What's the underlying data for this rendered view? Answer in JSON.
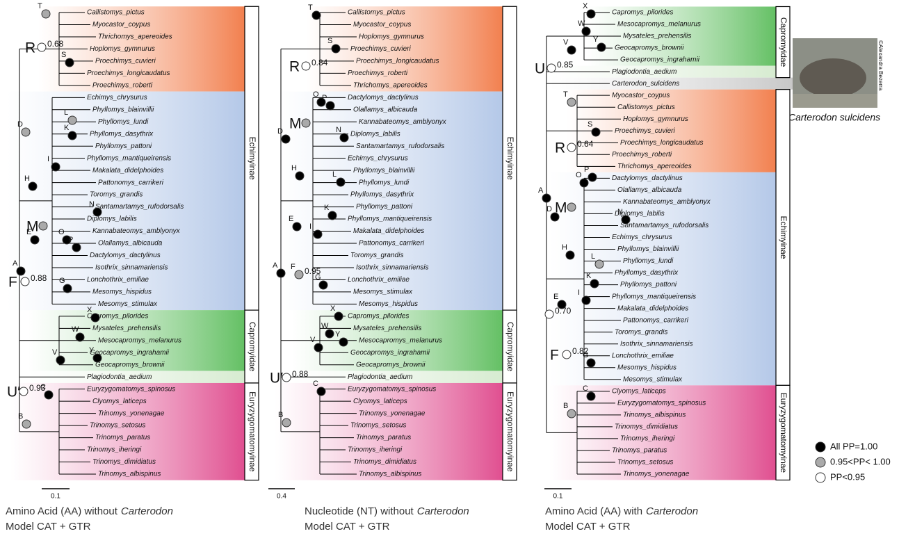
{
  "panels": [
    {
      "caption": {
        "text": "Amino Acid (AA) without",
        "italic": "Carterodon",
        "model": "Model CAT + GTR"
      },
      "scale": "0.1",
      "groups": [
        {
          "color": "#f2804f",
          "taxa": [
            "Callistomys_pictus",
            "Myocastor_coypus",
            "Thrichomys_apereoides",
            "Hoplomys_gymnurus",
            "Proechimys_cuvieri",
            "Proechimys_longicaudatus",
            "Proechimys_roberti"
          ]
        },
        {
          "color": "#b4c8e8",
          "taxa": [
            "Echimys_chrysurus",
            "Phyllomys_blainvillii",
            "Phyllomys_lundi",
            "Phyllomys_dasythrix",
            "Phyllomys_pattoni",
            "Phyllomys_mantiqueirensis",
            "Makalata_didelphoides",
            "Pattonomys_carrikeri",
            "Toromys_grandis",
            "Santamartamys_rufodorsalis",
            "Diplomys_labilis",
            "Kannabateomys_amblyonyx",
            "Olallamys_albicauda",
            "Dactylomys_dactylinus",
            "Isothrix_sinnamariensis",
            "Lonchothrix_emiliae",
            "Mesomys_hispidus",
            "Mesomys_stimulax"
          ]
        },
        {
          "color": "#64c064",
          "taxa": [
            "Capromys_pilorides",
            "Mysateles_prehensilis",
            "Mesocapromys_melanurus",
            "Geocapromys_ingrahamii",
            "Geocapromys_brownii"
          ]
        },
        {
          "color": "#d6ebd0",
          "taxa": [
            "Plagiodontia_aedium"
          ]
        },
        {
          "color": "#e04f90",
          "taxa": [
            "Euryzygomatomys_spinosus",
            "Clyomys_laticeps",
            "Trinomys_yonenagae",
            "Trinomys_setosus",
            "Trinomys_paratus",
            "Trinomys_iheringi",
            "Trinomys_dimidiatus",
            "Trinomys_albispinus"
          ]
        }
      ],
      "boxes": [
        {
          "label": "Echimyinae"
        },
        {
          "label": "Capromyidae"
        },
        {
          "label": "Euryzygomatomyinae"
        }
      ],
      "nodes": [
        {
          "label": "T",
          "marker": "#aaa"
        },
        {
          "label": "R",
          "marker": "#fff",
          "support": "0.68",
          "large": true
        },
        {
          "label": "S",
          "marker": "#000"
        },
        {
          "label": "D",
          "marker": "#aaa"
        },
        {
          "label": "L",
          "marker": "#aaa"
        },
        {
          "label": "K",
          "marker": "#000"
        },
        {
          "label": "I",
          "marker": "#000"
        },
        {
          "label": "H",
          "marker": "#000"
        },
        {
          "label": "N",
          "marker": "#000"
        },
        {
          "label": "M",
          "marker": "#aaa",
          "large": true
        },
        {
          "label": "O",
          "marker": "#000"
        },
        {
          "label": "P",
          "marker": "#000"
        },
        {
          "label": "E",
          "marker": "#000"
        },
        {
          "label": "A",
          "marker": "#000"
        },
        {
          "label": "F",
          "marker": "#fff",
          "support": "0.88",
          "large": true
        },
        {
          "label": "G",
          "marker": "#000"
        },
        {
          "label": "X",
          "marker": "#000"
        },
        {
          "label": "W",
          "marker": "#000"
        },
        {
          "label": "Y",
          "marker": "#000"
        },
        {
          "label": "V",
          "marker": "#000"
        },
        {
          "label": "U′",
          "marker": "#fff",
          "support": "0.93",
          "large": true
        },
        {
          "label": "C",
          "marker": "#000"
        },
        {
          "label": "B",
          "marker": "#aaa"
        }
      ]
    },
    {
      "caption": {
        "text": "Nucleotide (NT) without",
        "italic": "Carterodon",
        "model": "Model CAT + GTR"
      },
      "scale": "0.4",
      "groups": [
        {
          "color": "#f2804f",
          "taxa": [
            "Callistomys_pictus",
            "Myocastor_coypus",
            "Hoplomys_gymnurus",
            "Proechimys_cuvieri",
            "Proechimys_longicaudatus",
            "Proechimys_roberti",
            "Thrichomys_apereoides"
          ]
        },
        {
          "color": "#b4c8e8",
          "taxa": [
            "Dactylomys_dactylinus",
            "Olallamys_albicauda",
            "Kannabateomys_amblyonyx",
            "Diplomys_labilis",
            "Santamartamys_rufodorsalis",
            "Echimys_chrysurus",
            "Phyllomys_blainvillii",
            "Phyllomys_lundi",
            "Phyllomys_dasythrix",
            "Phyllomys_pattoni",
            "Phyllomys_mantiqueirensis",
            "Makalata_didelphoides",
            "Pattonomys_carrikeri",
            "Toromys_grandis",
            "Isothrix_sinnamariensis",
            "Lonchothrix_emiliae",
            "Mesomys_stimulax",
            "Mesomys_hispidus"
          ]
        },
        {
          "color": "#64c064",
          "taxa": [
            "Capromys_pilorides",
            "Mysateles_prehensilis",
            "Mesocapromys_melanurus",
            "Geocapromys_ingrahamii",
            "Geocapromys_brownii"
          ]
        },
        {
          "color": "#d6ebd0",
          "taxa": [
            "Plagiodontia_aedium"
          ]
        },
        {
          "color": "#e04f90",
          "taxa": [
            "Euryzygomatomys_spinosus",
            "Clyomys_laticeps",
            "Trinomys_yonenagae",
            "Trinomys_setosus",
            "Trinomys_paratus",
            "Trinomys_iheringi",
            "Trinomys_dimidiatus",
            "Trinomys_albispinus"
          ]
        }
      ],
      "boxes": [
        {
          "label": "Echimyinae"
        },
        {
          "label": "Capromyidae"
        },
        {
          "label": "Euryzygomatomyinae"
        }
      ],
      "nodes": [
        {
          "label": "T",
          "marker": "#000"
        },
        {
          "label": "R",
          "marker": "#fff",
          "support": "0.84",
          "large": true
        },
        {
          "label": "S",
          "marker": "#000"
        },
        {
          "label": "O",
          "marker": "#000"
        },
        {
          "label": "P",
          "marker": "#000"
        },
        {
          "label": "M",
          "marker": "#aaa",
          "large": true
        },
        {
          "label": "D",
          "marker": "#000"
        },
        {
          "label": "N",
          "marker": "#000"
        },
        {
          "label": "H",
          "marker": "#000"
        },
        {
          "label": "L",
          "marker": "#000"
        },
        {
          "label": "K",
          "marker": "#000"
        },
        {
          "label": "I",
          "marker": "#000"
        },
        {
          "label": "E",
          "marker": "#000"
        },
        {
          "label": "A",
          "marker": "#000"
        },
        {
          "label": "F",
          "marker": "#aaa",
          "support": "0.95"
        },
        {
          "label": "G",
          "marker": "#000"
        },
        {
          "label": "X",
          "marker": "#000"
        },
        {
          "label": "W",
          "marker": "#000"
        },
        {
          "label": "Y",
          "marker": "#000"
        },
        {
          "label": "V",
          "marker": "#000"
        },
        {
          "label": "U′",
          "marker": "#fff",
          "support": "0.88",
          "large": true
        },
        {
          "label": "C",
          "marker": "#000"
        },
        {
          "label": "B",
          "marker": "#aaa"
        }
      ]
    },
    {
      "caption": {
        "text": "Amino Acid (AA) with",
        "italic": "Carterodon",
        "model": "Model CAT + GTR"
      },
      "scale": "0.1",
      "groups": [
        {
          "color": "#64c064",
          "taxa": [
            "Capromys_pilorides",
            "Mesocapromys_melanurus",
            "Mysateles_prehensilis",
            "Geocapromys_brownii",
            "Geocapromys_ingrahamii"
          ]
        },
        {
          "color": "#d6ebd0",
          "taxa": [
            "Plagiodontia_aedium"
          ]
        },
        {
          "color": "#c8c8c8",
          "taxa": [
            "Carterodon_sulcidens"
          ]
        },
        {
          "color": "#f2804f",
          "taxa": [
            "Myocastor_coypus",
            "Callistomys_pictus",
            "Hoplomys_gymnurus",
            "Proechimys_cuvieri",
            "Proechimys_longicaudatus",
            "Proechimys_roberti",
            "Thrichomys_apereoides"
          ]
        },
        {
          "color": "#b4c8e8",
          "taxa": [
            "Dactylomys_dactylinus",
            "Olallamys_albicauda",
            "Kannabateomys_amblyonyx",
            "Diplomys_labilis",
            "Santamartamys_rufodorsalis",
            "Echimys_chrysurus",
            "Phyllomys_blainvillii",
            "Phyllomys_lundi",
            "Phyllomys_dasythrix",
            "Phyllomys_pattoni",
            "Phyllomys_mantiqueirensis",
            "Makalata_didelphoides",
            "Pattonomys_carrikeri",
            "Toromys_grandis",
            "Isothrix_sinnamariensis",
            "Lonchothrix_emiliae",
            "Mesomys_hispidus",
            "Mesomys_stimulax"
          ]
        },
        {
          "color": "#e04f90",
          "taxa": [
            "Clyomys_laticeps",
            "Euryzygomatomys_spinosus",
            "Trinomys_albispinus",
            "Trinomys_dimidiatus",
            "Trinomys_iheringi",
            "Trinomys_paratus",
            "Trinomys_setosus",
            "Trinomys_yonenagae"
          ]
        }
      ],
      "boxes": [
        {
          "label": "Capromyidae"
        },
        {
          "label": "Echimyinae"
        },
        {
          "label": "Euryzygomatomyinae"
        }
      ],
      "nodes": [
        {
          "label": "X",
          "marker": "#000"
        },
        {
          "label": "W",
          "marker": "#000"
        },
        {
          "label": "Y",
          "marker": "#000"
        },
        {
          "label": "V",
          "marker": "#000"
        },
        {
          "label": "U",
          "marker": "#fff",
          "support": "0.85",
          "large": true
        },
        {
          "label": "T",
          "marker": "#aaa"
        },
        {
          "label": "R",
          "marker": "#fff",
          "support": "0.64",
          "large": true
        },
        {
          "label": "S",
          "marker": "#000"
        },
        {
          "label": "P",
          "marker": "#000"
        },
        {
          "label": "O",
          "marker": "#000"
        },
        {
          "label": "M",
          "marker": "#aaa",
          "large": true
        },
        {
          "label": "D",
          "marker": "#000"
        },
        {
          "label": "N",
          "marker": "#000"
        },
        {
          "label": "A",
          "marker": "#000"
        },
        {
          "label": "H",
          "marker": "#000"
        },
        {
          "label": "L",
          "marker": "#aaa"
        },
        {
          "label": "K",
          "marker": "#000"
        },
        {
          "label": "I",
          "marker": "#000"
        },
        {
          "label": "E",
          "marker": "#000"
        },
        {
          "label": "F",
          "marker": "#fff",
          "support": "0.82",
          "large": true
        },
        {
          "label": "G",
          "marker": "#000"
        },
        {
          "label": "C",
          "marker": "#000"
        },
        {
          "label": "B",
          "marker": "#aaa"
        },
        {
          "marker": "#fff",
          "support": "0.70"
        }
      ]
    }
  ],
  "legend": [
    {
      "label": "All PP=1.00",
      "marker": "#000"
    },
    {
      "label": "0.95<PP< 1.00",
      "marker": "#aaa"
    },
    {
      "label": "PP<0.95",
      "marker": "#fff"
    }
  ],
  "photo": {
    "caption": "Carterodon sulcidens",
    "credit": "©Alexandra Bezerra"
  }
}
